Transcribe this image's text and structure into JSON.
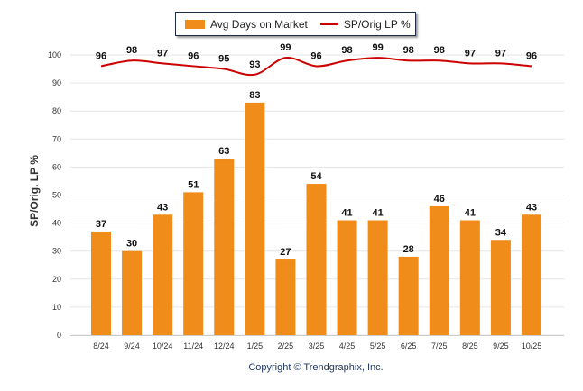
{
  "chart_data": {
    "type": "bar",
    "title": "",
    "xlabel": "",
    "ylabel": "SP/Orig. LP %",
    "ylim": [
      0,
      100
    ],
    "yticks": [
      0,
      10,
      20,
      30,
      40,
      50,
      60,
      70,
      80,
      90,
      100
    ],
    "grid": true,
    "legend_placement": "top-center",
    "categories": [
      "8/24",
      "9/24",
      "10/24",
      "11/24",
      "12/24",
      "1/25",
      "2/25",
      "3/25",
      "4/25",
      "5/25",
      "6/25",
      "7/25",
      "8/25",
      "9/25",
      "10/25"
    ],
    "series": [
      {
        "name": "Avg Days on Market",
        "type": "bar",
        "color": "#f08c1a",
        "values": [
          37,
          30,
          43,
          51,
          63,
          83,
          27,
          54,
          41,
          41,
          28,
          46,
          41,
          34,
          43
        ]
      },
      {
        "name": "SP/Orig LP %",
        "type": "line",
        "color": "#cc0000",
        "values": [
          96,
          98,
          97,
          96,
          95,
          93,
          99,
          96,
          98,
          99,
          98,
          98,
          97,
          97,
          96
        ]
      }
    ]
  },
  "legend": {
    "bar_label": "Avg Days on Market",
    "line_label": "SP/Orig LP %"
  },
  "copyright": "Copyright © Trendgraphix, Inc."
}
